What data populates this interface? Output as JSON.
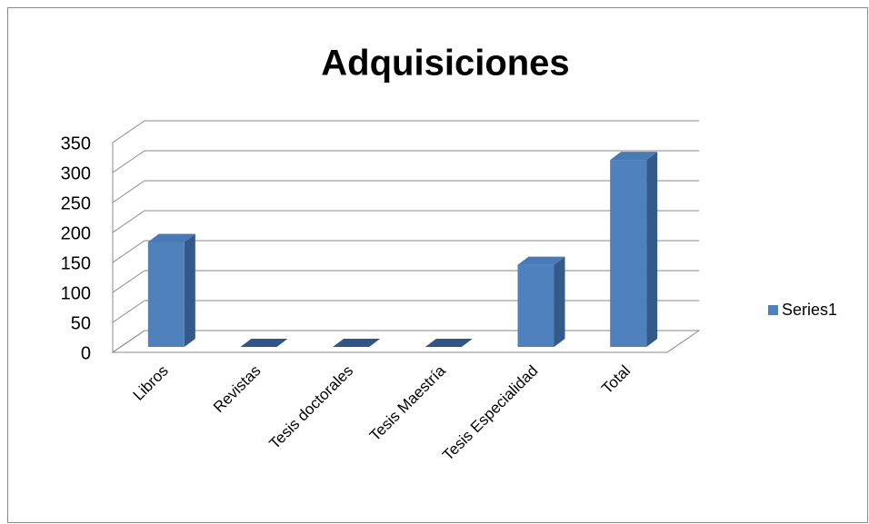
{
  "chart_data": {
    "type": "bar",
    "title": "Adquisiciones",
    "categories": [
      "Libros",
      "Revistas",
      "Tesis doctorales",
      "Tesis Maestría",
      "Tesis Especialidad",
      "Total"
    ],
    "series": [
      {
        "name": "Series1",
        "color": "#4f81bd",
        "values": [
          175,
          0,
          0,
          0,
          137,
          312
        ]
      }
    ],
    "ylim": [
      0,
      350
    ],
    "yticks": [
      0,
      50,
      100,
      150,
      200,
      250,
      300,
      350
    ],
    "grid": true,
    "legend": "right"
  }
}
